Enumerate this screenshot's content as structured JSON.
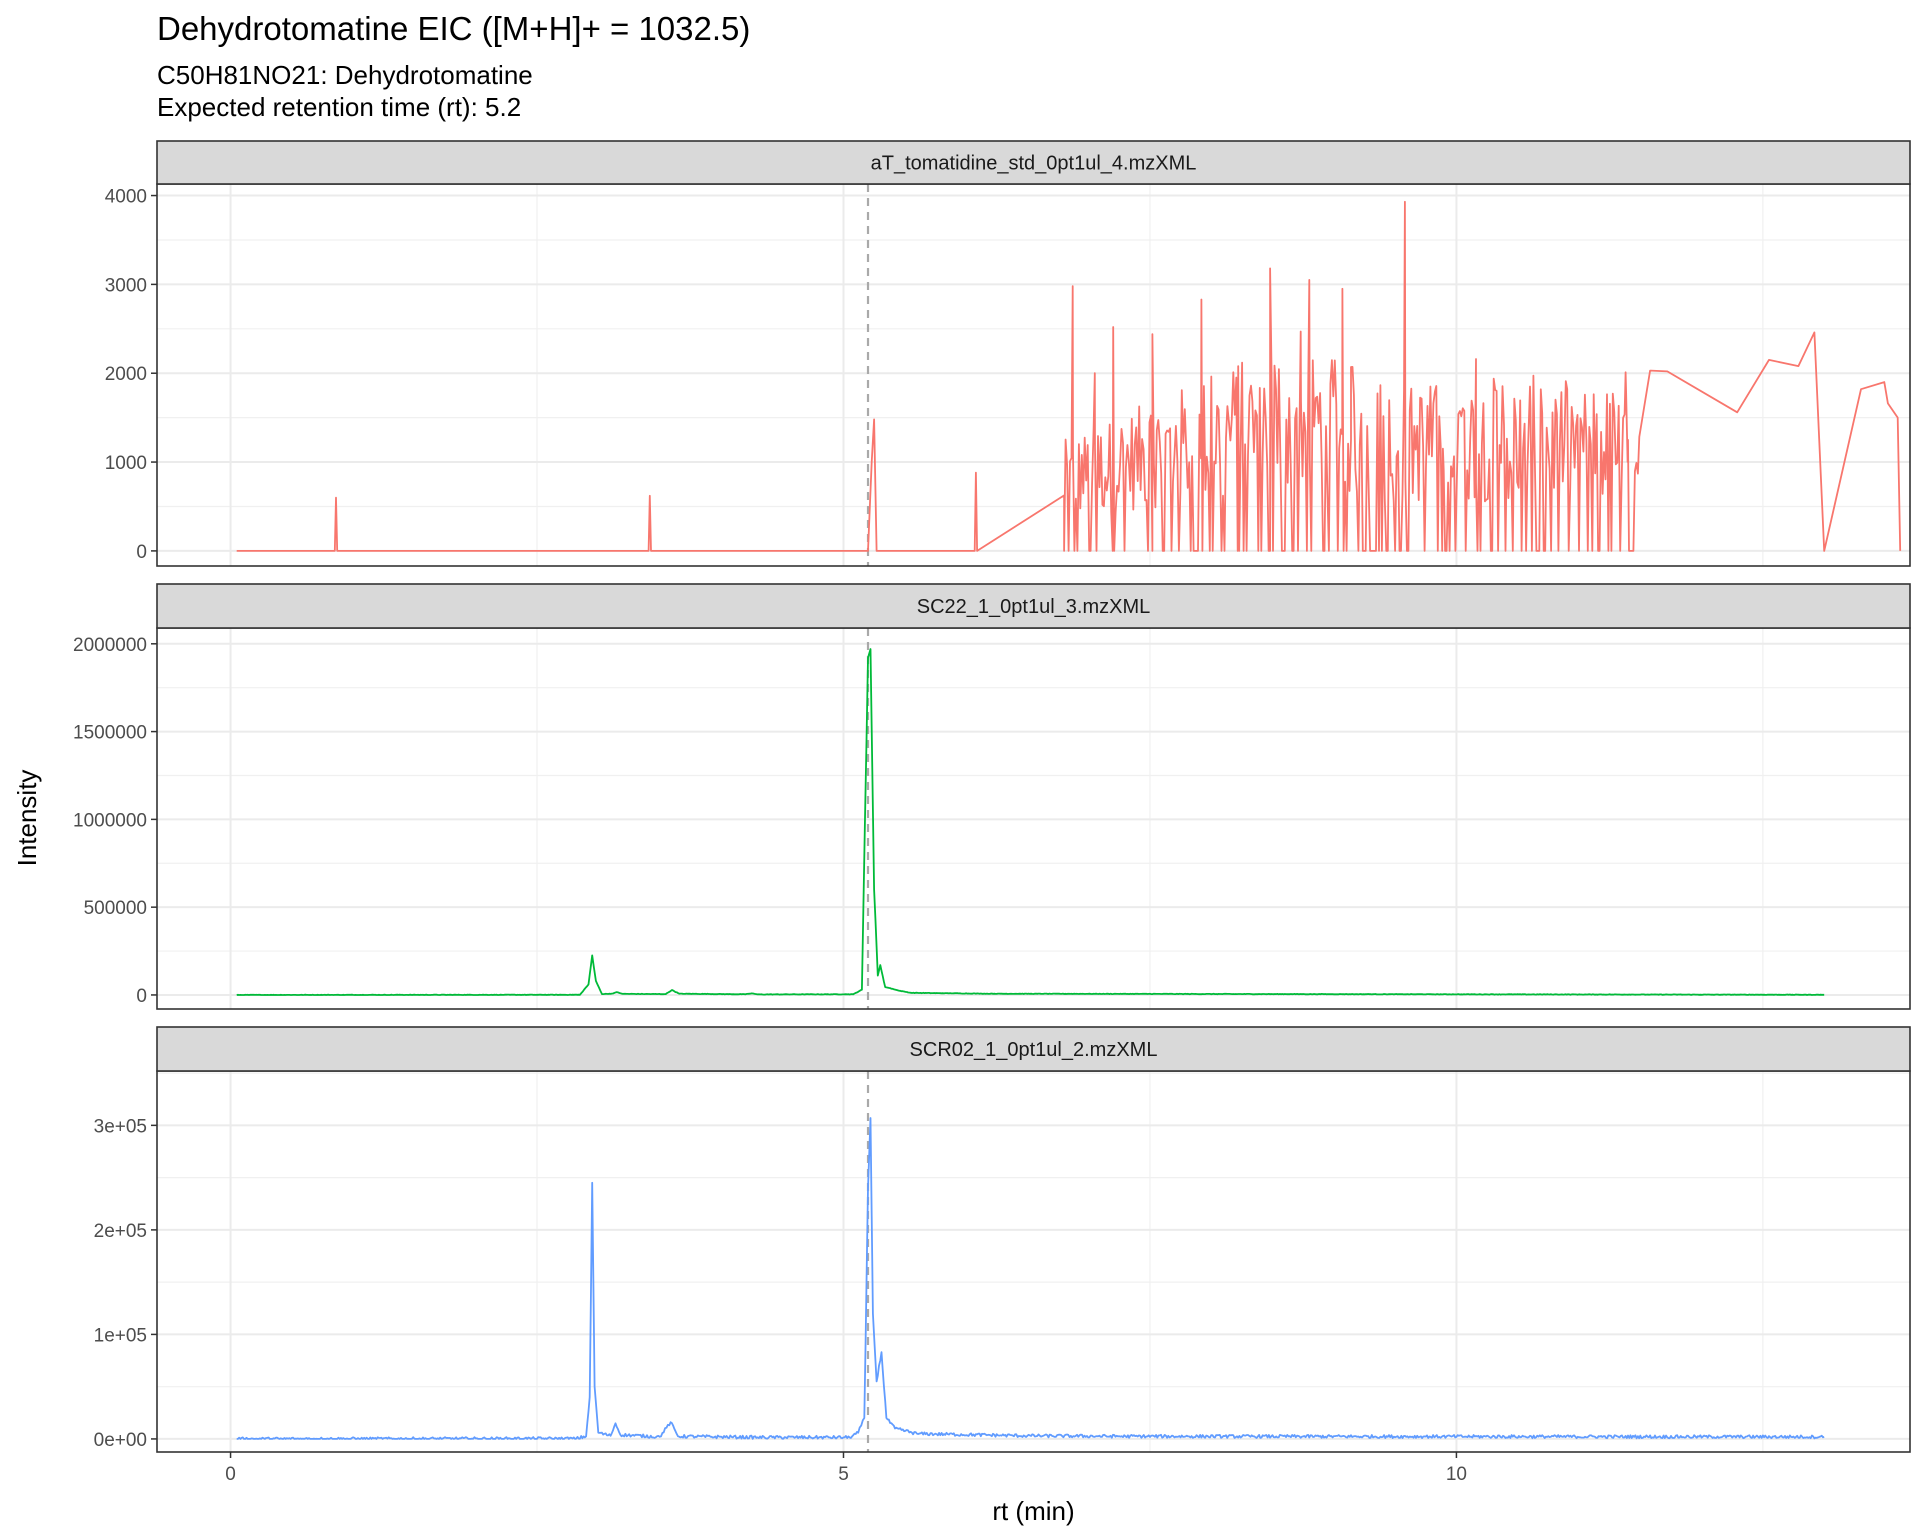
{
  "title": "Dehydrotomatine EIC ([M+H]+ = 1032.5)",
  "subtitle_line1": "C50H81NO21: Dehydrotomatine",
  "subtitle_line2": "Expected retention time (rt): 5.2",
  "chart_data": {
    "type": "line",
    "xlabel": "rt (min)",
    "ylabel": "Intensity",
    "xlim": [
      -0.6,
      13.7
    ],
    "x_ticks": [
      0,
      5,
      10
    ],
    "x_tick_labels": [
      "0",
      "5",
      "10"
    ],
    "expected_rt": 5.2,
    "vline_color": "#a9a9a9",
    "grid": true,
    "panels": [
      {
        "name": "aT_tomatidine_std_0pt1ul_4.mzXML",
        "color": "#F8766D",
        "ylim": [
          -170,
          4130
        ],
        "y_ticks": [
          0,
          1000,
          2000,
          3000,
          4000
        ],
        "y_tick_labels": [
          "0",
          "1000",
          "2000",
          "3000",
          "4000"
        ],
        "noise": {
          "start": 6.8,
          "end": 11.5,
          "envelope": [
            [
              6.8,
              1000
            ],
            [
              7.8,
              1500
            ],
            [
              8.6,
              1900
            ],
            [
              9.6,
              1500
            ],
            [
              10.5,
              1600
            ],
            [
              11.5,
              1450
            ]
          ]
        },
        "points": [
          [
            0.05,
            0
          ],
          [
            0.85,
            0
          ],
          [
            0.86,
            600
          ],
          [
            0.87,
            0
          ],
          [
            3.41,
            0
          ],
          [
            3.42,
            620
          ],
          [
            3.43,
            0
          ],
          [
            5.2,
            0
          ],
          [
            5.23,
            1000
          ],
          [
            5.25,
            1480
          ],
          [
            5.27,
            0
          ],
          [
            6.07,
            0
          ],
          [
            6.08,
            880
          ],
          [
            6.09,
            0
          ],
          [
            6.8,
            0
          ],
          [
            6.87,
            2980
          ],
          [
            7.05,
            2000
          ],
          [
            7.2,
            2520
          ],
          [
            7.52,
            2440
          ],
          [
            7.92,
            2830
          ],
          [
            8.22,
            2080
          ],
          [
            8.48,
            3180
          ],
          [
            8.73,
            2470
          ],
          [
            8.8,
            3050
          ],
          [
            9.07,
            2950
          ],
          [
            9.14,
            2070
          ],
          [
            9.58,
            3930
          ],
          [
            9.89,
            1150
          ],
          [
            10.16,
            2160
          ],
          [
            10.6,
            1850
          ],
          [
            11.38,
            2010
          ],
          [
            11.4,
            1250
          ],
          [
            11.58,
            2030
          ],
          [
            11.72,
            2020
          ],
          [
            12.29,
            1560
          ],
          [
            12.55,
            2150
          ],
          [
            12.79,
            2080
          ],
          [
            12.92,
            2460
          ],
          [
            13.3,
            1820
          ],
          [
            13.49,
            1900
          ],
          [
            13.52,
            1660
          ],
          [
            13.6,
            1500
          ],
          [
            13.62,
            0
          ],
          [
            13.0,
            0
          ]
        ]
      },
      {
        "name": "SC22_1_0pt1ul_3.mzXML",
        "color": "#00BA38",
        "ylim": [
          -80000,
          2090000
        ],
        "y_ticks": [
          0,
          500000,
          1000000,
          1500000,
          2000000
        ],
        "y_tick_labels": [
          "0",
          "500000",
          "1000000",
          "1500000",
          "2000000"
        ],
        "noise": {
          "amp": 1200
        },
        "points": [
          [
            0.05,
            0
          ],
          [
            2.85,
            1000
          ],
          [
            2.92,
            60000
          ],
          [
            2.95,
            225000
          ],
          [
            2.98,
            80000
          ],
          [
            3.03,
            5000
          ],
          [
            3.12,
            8000
          ],
          [
            3.15,
            16000
          ],
          [
            3.2,
            6000
          ],
          [
            3.55,
            5000
          ],
          [
            3.6,
            28000
          ],
          [
            3.66,
            7000
          ],
          [
            4.2,
            4000
          ],
          [
            4.25,
            9000
          ],
          [
            4.3,
            3000
          ],
          [
            5.08,
            4000
          ],
          [
            5.15,
            30000
          ],
          [
            5.2,
            1920000
          ],
          [
            5.22,
            1970000
          ],
          [
            5.25,
            600000
          ],
          [
            5.28,
            110000
          ],
          [
            5.3,
            170000
          ],
          [
            5.34,
            45000
          ],
          [
            5.4,
            35000
          ],
          [
            5.45,
            25000
          ],
          [
            5.55,
            12000
          ],
          [
            6.2,
            7000
          ],
          [
            13.0,
            1000
          ]
        ]
      },
      {
        "name": "SCR02_1_0pt1ul_2.mzXML",
        "color": "#619CFF",
        "ylim": [
          -12500,
          352000
        ],
        "y_ticks": [
          0,
          100000,
          200000,
          300000
        ],
        "y_tick_labels": [
          "0e+00",
          "1e+05",
          "2e+05",
          "3e+05"
        ],
        "noise": {
          "amp": 1500
        },
        "points": [
          [
            0.05,
            0
          ],
          [
            2.82,
            300
          ],
          [
            2.9,
            2500
          ],
          [
            2.93,
            40000
          ],
          [
            2.95,
            245000
          ],
          [
            2.97,
            50000
          ],
          [
            3.0,
            6000
          ],
          [
            3.1,
            3000
          ],
          [
            3.14,
            15000
          ],
          [
            3.18,
            4000
          ],
          [
            3.5,
            2000
          ],
          [
            3.59,
            16000
          ],
          [
            3.65,
            2500
          ],
          [
            4.3,
            1500
          ],
          [
            5.05,
            1500
          ],
          [
            5.12,
            6000
          ],
          [
            5.17,
            20000
          ],
          [
            5.2,
            240000
          ],
          [
            5.22,
            307000
          ],
          [
            5.24,
            120000
          ],
          [
            5.27,
            55000
          ],
          [
            5.31,
            83000
          ],
          [
            5.35,
            20000
          ],
          [
            5.42,
            10000
          ],
          [
            5.6,
            5000
          ],
          [
            6.5,
            3000
          ],
          [
            7.3,
            2500
          ],
          [
            13.0,
            2000
          ]
        ]
      }
    ]
  }
}
